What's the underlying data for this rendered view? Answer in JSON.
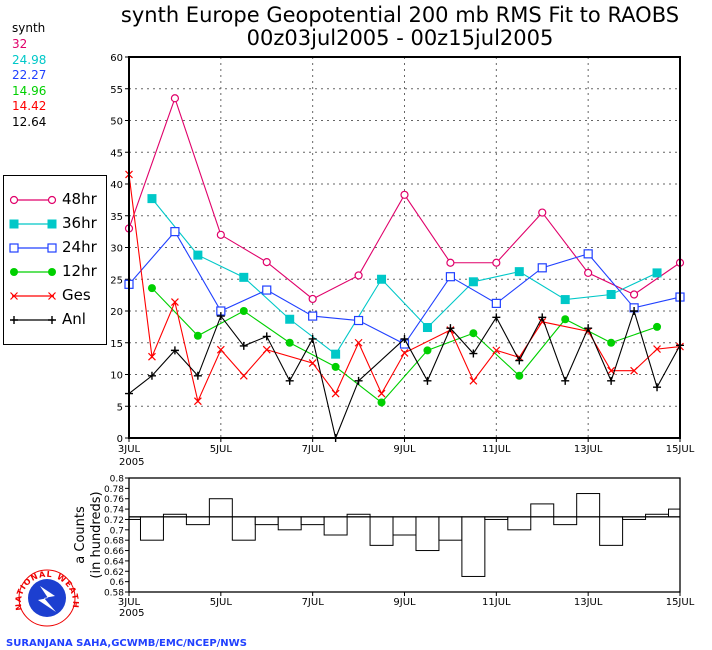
{
  "title": {
    "line1": "synth Europe Geopotential 200 mb RMS Fit to RAOBS",
    "line2": "00z03jul2005 - 00z15jul2005"
  },
  "synth": {
    "label": "synth",
    "values": [
      {
        "text": "32",
        "color": "#e0006a"
      },
      {
        "text": "24.98",
        "color": "#00c8c8"
      },
      {
        "text": "22.27",
        "color": "#2040ff"
      },
      {
        "text": "14.96",
        "color": "#00d000"
      },
      {
        "text": "14.42",
        "color": "#ff0000"
      },
      {
        "text": "12.64",
        "color": "#000000"
      }
    ]
  },
  "legend": [
    "48hr",
    "36hr",
    "24hr",
    "12hr",
    "Ges",
    "Anl"
  ],
  "credit": "SURANJANA SAHA,GCWMB/EMC/NCEP/NWS",
  "logo_text": "NATIONAL WEATHER SERVICE",
  "chart_data": [
    {
      "type": "line",
      "x_ticks": [
        "3JUL",
        "5JUL",
        "7JUL",
        "9JUL",
        "11JUL",
        "13JUL",
        "15JUL"
      ],
      "x_year": "2005",
      "x": [
        "3JUL00",
        "3JUL12",
        "4JUL00",
        "4JUL12",
        "5JUL00",
        "5JUL12",
        "6JUL00",
        "6JUL12",
        "7JUL00",
        "7JUL12",
        "8JUL00",
        "8JUL12",
        "9JUL00",
        "9JUL12",
        "10JUL00",
        "10JUL12",
        "11JUL00",
        "11JUL12",
        "12JUL00",
        "12JUL12",
        "13JUL00",
        "13JUL12",
        "14JUL00",
        "14JUL12",
        "15JUL00"
      ],
      "ylim": [
        0,
        60
      ],
      "y_ticks": [
        0,
        5,
        10,
        15,
        20,
        25,
        30,
        35,
        40,
        45,
        50,
        55,
        60
      ],
      "grid": true,
      "legend_position": "left",
      "series": [
        {
          "name": "48hr",
          "color": "#e0006a",
          "marker": "open-circle",
          "values": [
            33,
            null,
            53.5,
            null,
            32,
            null,
            27.7,
            null,
            21.9,
            null,
            25.6,
            null,
            38.3,
            null,
            27.6,
            null,
            27.6,
            null,
            35.5,
            null,
            26,
            null,
            22.6,
            null,
            27.6
          ]
        },
        {
          "name": "36hr",
          "color": "#00c8c8",
          "marker": "filled-square",
          "values": [
            null,
            37.7,
            null,
            28.8,
            null,
            25.3,
            null,
            18.7,
            null,
            13.2,
            null,
            25,
            null,
            17.4,
            null,
            24.6,
            null,
            26.2,
            null,
            21.8,
            null,
            22.6,
            null,
            26,
            null
          ]
        },
        {
          "name": "24hr",
          "color": "#2040ff",
          "marker": "open-square",
          "values": [
            24.2,
            null,
            32.5,
            null,
            20,
            null,
            23.3,
            null,
            19.2,
            null,
            18.5,
            null,
            14.8,
            null,
            25.4,
            null,
            21.2,
            null,
            26.8,
            null,
            29,
            null,
            20.5,
            null,
            22.2
          ]
        },
        {
          "name": "12hr",
          "color": "#00d000",
          "marker": "filled-circle",
          "values": [
            null,
            23.6,
            null,
            16.1,
            null,
            20,
            null,
            15,
            null,
            11.2,
            null,
            5.6,
            null,
            13.8,
            null,
            16.5,
            null,
            9.8,
            null,
            18.7,
            null,
            15,
            null,
            17.5,
            null
          ]
        },
        {
          "name": "Ges",
          "color": "#ff0000",
          "marker": "x",
          "values": [
            41.5,
            12.8,
            21.4,
            5.8,
            13.9,
            9.8,
            13.9,
            null,
            11.8,
            7,
            15,
            7,
            13.4,
            null,
            17,
            9,
            13.8,
            12.7,
            18.3,
            null,
            16.8,
            10.6,
            10.6,
            14,
            14.4
          ]
        },
        {
          "name": "Anl",
          "color": "#000000",
          "marker": "plus",
          "values": [
            7,
            9.8,
            13.8,
            9.8,
            19.2,
            14.5,
            16,
            9,
            15.6,
            0,
            9,
            null,
            15.6,
            9,
            17.3,
            13.3,
            19,
            12.2,
            19,
            9,
            17.3,
            9,
            20,
            8,
            14.6
          ]
        }
      ]
    },
    {
      "type": "bar",
      "ylabel": "Data Counts (in hundreds)",
      "ylabel_visible": "a Counts",
      "ylabel_line2": "(in hundreds)",
      "ylim": [
        0.58,
        0.8
      ],
      "y_ticks": [
        "0.58",
        "0.6",
        "0.62",
        "0.64",
        "0.66",
        "0.68",
        "0.7",
        "0.72",
        "0.74",
        "0.76",
        "0.78",
        "0.8"
      ],
      "x_ticks": [
        "3JUL",
        "5JUL",
        "7JUL",
        "9JUL",
        "11JUL",
        "13JUL",
        "15JUL"
      ],
      "x_year": "2005",
      "reference": 0.725,
      "values": [
        0.72,
        0.68,
        0.73,
        0.71,
        0.76,
        0.68,
        0.71,
        0.7,
        0.71,
        0.69,
        0.73,
        0.67,
        0.69,
        0.66,
        0.68,
        0.61,
        0.72,
        0.7,
        0.75,
        0.71,
        0.77,
        0.67,
        0.72,
        0.73,
        0.74
      ]
    }
  ]
}
